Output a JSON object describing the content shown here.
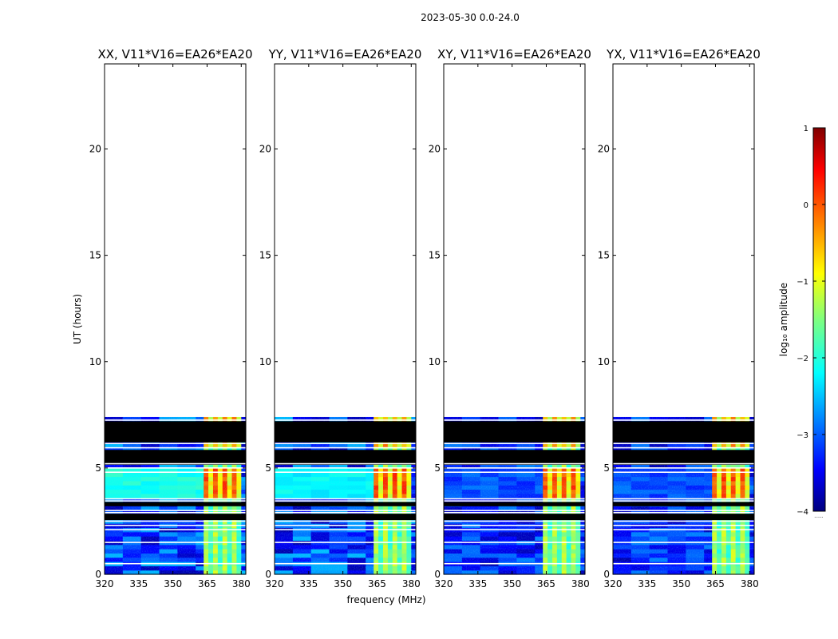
{
  "chart_data": [
    {
      "type": "heatmap",
      "title": "XX, V11*V16=EA26*EA20",
      "pol": "XX",
      "xlabel": "",
      "ylabel": "UT (hours)",
      "xlim": [
        320,
        382
      ],
      "ylim": [
        0,
        24
      ],
      "xticks": [
        "320",
        "335",
        "350",
        "365",
        "380"
      ],
      "yticks": [
        "0",
        "5",
        "10",
        "15",
        "20"
      ],
      "data_top_hours": 7.4,
      "rfi_band_mhz": [
        363.5,
        380
      ],
      "flagged_blocks_hours": [
        [
          6.2,
          7.2
        ],
        [
          5.15,
          5.85
        ],
        [
          3.2,
          3.4
        ],
        [
          2.55,
          2.85
        ]
      ],
      "bright_block_hours": [
        3.6,
        5.1
      ],
      "noise_log10_range": [
        -3.8,
        -2.5
      ]
    },
    {
      "type": "heatmap",
      "title": "YY, V11*V16=EA26*EA20",
      "pol": "YY",
      "xlabel": "",
      "ylabel": "",
      "xlim": [
        320,
        382
      ],
      "ylim": [
        0,
        24
      ],
      "xticks": [
        "320",
        "335",
        "350",
        "365",
        "380"
      ],
      "yticks": [
        "0",
        "5",
        "10",
        "15",
        "20"
      ],
      "data_top_hours": 7.4,
      "rfi_band_mhz": [
        363.5,
        380
      ],
      "flagged_blocks_hours": [
        [
          6.2,
          7.2
        ],
        [
          5.15,
          5.85
        ],
        [
          3.2,
          3.4
        ],
        [
          2.55,
          2.85
        ]
      ],
      "bright_block_hours": [
        3.6,
        5.1
      ],
      "noise_log10_range": [
        -3.8,
        -2.5
      ]
    },
    {
      "type": "heatmap",
      "title": "XY, V11*V16=EA26*EA20",
      "pol": "XY",
      "xlabel": "",
      "ylabel": "",
      "xlim": [
        320,
        382
      ],
      "ylim": [
        0,
        24
      ],
      "xticks": [
        "320",
        "335",
        "350",
        "365",
        "380"
      ],
      "yticks": [
        "0",
        "5",
        "10",
        "15",
        "20"
      ],
      "data_top_hours": 7.4,
      "rfi_band_mhz": [
        363.5,
        380
      ],
      "flagged_blocks_hours": [
        [
          6.2,
          7.2
        ],
        [
          5.15,
          5.85
        ],
        [
          3.2,
          3.4
        ],
        [
          2.55,
          2.85
        ]
      ],
      "bright_block_hours": [
        3.6,
        5.1
      ],
      "noise_log10_range": [
        -3.8,
        -2.8
      ]
    },
    {
      "type": "heatmap",
      "title": "YX, V11*V16=EA26*EA20",
      "pol": "YX",
      "xlabel": "",
      "ylabel": "",
      "xlim": [
        320,
        382
      ],
      "ylim": [
        0,
        24
      ],
      "xticks": [
        "320",
        "335",
        "350",
        "365",
        "380"
      ],
      "yticks": [
        "0",
        "5",
        "10",
        "15",
        "20"
      ],
      "data_top_hours": 7.4,
      "rfi_band_mhz": [
        363.5,
        380
      ],
      "flagged_blocks_hours": [
        [
          6.2,
          7.2
        ],
        [
          5.15,
          5.85
        ],
        [
          3.2,
          3.4
        ],
        [
          2.55,
          2.85
        ]
      ],
      "bright_block_hours": [
        3.6,
        5.1
      ],
      "noise_log10_range": [
        -3.8,
        -2.8
      ]
    }
  ],
  "figure": {
    "suptitle": "2023-05-30 0.0-24.0",
    "shared_xlabel": "frequency (MHz)"
  },
  "colorbar": {
    "label": "log₁₀ amplitude",
    "range": [
      -4,
      1
    ],
    "ticks": [
      "1",
      "0",
      "−1",
      "−2",
      "−3",
      "−4"
    ],
    "footnote": "......"
  }
}
